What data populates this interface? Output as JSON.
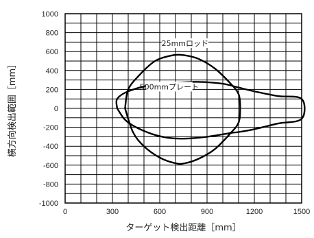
{
  "chart_data": {
    "type": "line",
    "title": "",
    "xlabel": "ターゲット検出距離［mm］",
    "ylabel": "横方向検出範囲［mm］",
    "xlim": [
      0,
      1500
    ],
    "ylim": [
      -1000,
      1000
    ],
    "x_ticks": [
      "0",
      "300",
      "600",
      "900",
      "1200",
      "1500"
    ],
    "y_ticks": [
      "1000",
      "800",
      "600",
      "400",
      "200",
      "0",
      "-200",
      "-400",
      "-600",
      "-800",
      "-1000"
    ],
    "grid": true,
    "series": [
      {
        "name": "25mmロッド",
        "points": [
          [
            380,
            0
          ],
          [
            400,
            200
          ],
          [
            470,
            350
          ],
          [
            570,
            500
          ],
          [
            680,
            560
          ],
          [
            760,
            560
          ],
          [
            850,
            520
          ],
          [
            950,
            420
          ],
          [
            1050,
            260
          ],
          [
            1100,
            150
          ],
          [
            1110,
            0
          ],
          [
            1100,
            -150
          ],
          [
            1050,
            -260
          ],
          [
            950,
            -430
          ],
          [
            850,
            -530
          ],
          [
            760,
            -580
          ],
          [
            700,
            -580
          ],
          [
            600,
            -520
          ],
          [
            500,
            -400
          ],
          [
            430,
            -250
          ],
          [
            380,
            0
          ]
        ],
        "color": "#000000"
      },
      {
        "name": "500mmプレート",
        "points": [
          [
            330,
            0
          ],
          [
            330,
            100
          ],
          [
            400,
            180
          ],
          [
            550,
            250
          ],
          [
            700,
            270
          ],
          [
            850,
            280
          ],
          [
            1000,
            260
          ],
          [
            1100,
            220
          ],
          [
            1200,
            180
          ],
          [
            1350,
            130
          ],
          [
            1500,
            100
          ],
          [
            1500,
            -110
          ],
          [
            1350,
            -160
          ],
          [
            1200,
            -220
          ],
          [
            1100,
            -250
          ],
          [
            1050,
            -260
          ],
          [
            900,
            -300
          ],
          [
            750,
            -320
          ],
          [
            650,
            -310
          ],
          [
            550,
            -270
          ],
          [
            450,
            -200
          ],
          [
            380,
            -120
          ],
          [
            330,
            0
          ]
        ],
        "color": "#000000"
      }
    ]
  }
}
